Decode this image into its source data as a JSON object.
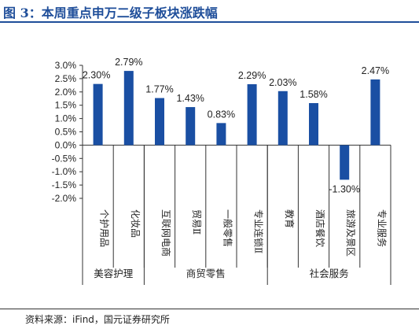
{
  "figure": {
    "title": "图 3：本周重点申万二级子板块涨跌幅",
    "source": "资料来源：iFind，国元证券研究所"
  },
  "chart_data": {
    "type": "bar",
    "categories": [
      "个护用品",
      "化妆品",
      "互联网电商",
      "贸易Ⅱ",
      "一般零售",
      "专业连锁Ⅱ",
      "教育",
      "酒店餐饮",
      "旅游及景区",
      "专业服务"
    ],
    "values": [
      2.3,
      2.79,
      1.77,
      1.43,
      0.83,
      2.29,
      2.03,
      1.58,
      -1.3,
      2.47
    ],
    "data_labels": [
      "2.30%",
      "2.79%",
      "1.77%",
      "1.43%",
      "0.83%",
      "2.29%",
      "2.03%",
      "1.58%",
      "-1.30%",
      "2.47%"
    ],
    "y_ticks": [
      3.0,
      2.5,
      2.0,
      1.5,
      1.0,
      0.5,
      0.0,
      -0.5,
      -1.0,
      -1.5,
      -2.0
    ],
    "y_tick_labels": [
      "3.0%",
      "2.5%",
      "2.0%",
      "1.5%",
      "1.0%",
      "0.5%",
      "0.0%",
      "-0.5%",
      "-1.0%",
      "-1.5%",
      "-2.0%"
    ],
    "ylim": [
      -2.0,
      3.0
    ],
    "groups": [
      {
        "label": "美容护理",
        "count": 2
      },
      {
        "label": "商贸零售",
        "count": 4
      },
      {
        "label": "社会服务",
        "count": 4
      }
    ],
    "grid": false,
    "bar_color": "#1a4fa3",
    "title": "",
    "xlabel": "",
    "ylabel": ""
  }
}
